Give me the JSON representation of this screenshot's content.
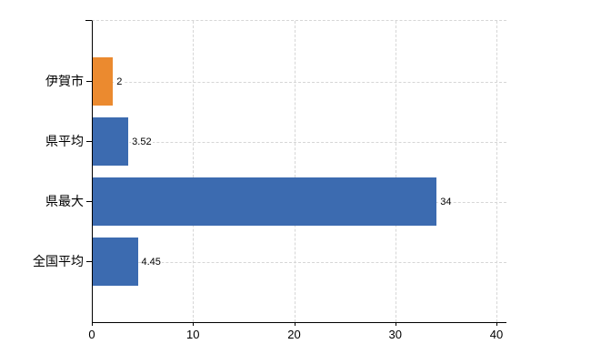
{
  "chart_data": {
    "type": "bar",
    "orientation": "horizontal",
    "categories": [
      "伊賀市",
      "県平均",
      "県最大",
      "全国平均"
    ],
    "values": [
      2,
      3.52,
      34,
      4.45
    ],
    "value_labels": [
      "2",
      "3.52",
      "34",
      "4.45"
    ],
    "bar_colors": [
      "#eb8a2f",
      "#3c6bb0",
      "#3c6bb0",
      "#3c6bb0"
    ],
    "xlim": [
      0,
      40
    ],
    "x_ticks": [
      0,
      10,
      20,
      30,
      40
    ],
    "x_tick_labels": [
      "0",
      "10",
      "20",
      "30",
      "40"
    ],
    "grid": true,
    "legend": false,
    "colors": {
      "highlight_bar": "#eb8a2f",
      "default_bar": "#3c6bb0",
      "gridline": "#d6d6d6",
      "axis": "#000000",
      "text": "#000000",
      "background": "#ffffff"
    }
  }
}
